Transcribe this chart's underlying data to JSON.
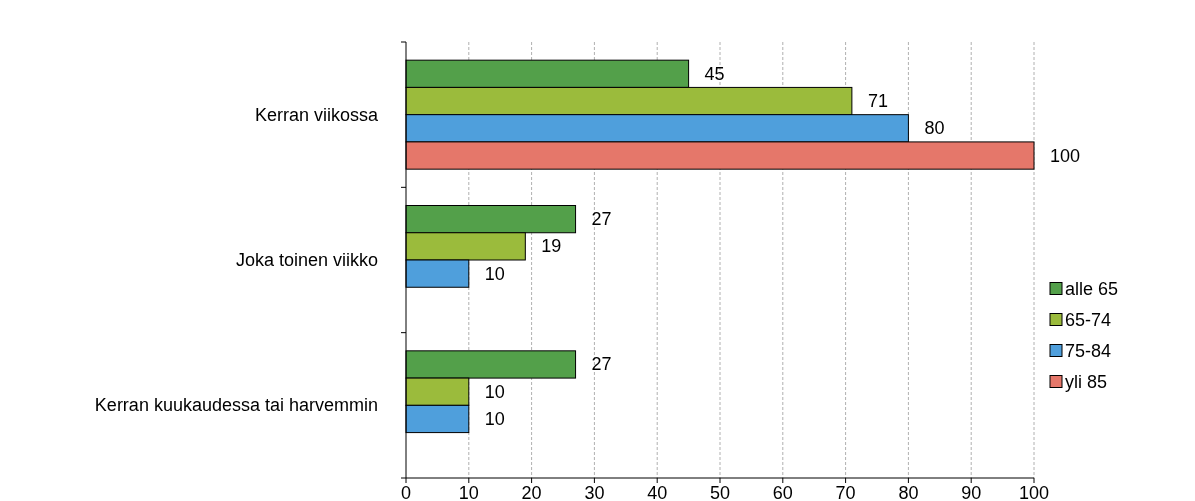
{
  "chart_data": {
    "type": "bar",
    "orientation": "horizontal",
    "categories": [
      "Kerran viikossa",
      "Joka toinen viikko",
      "Kerran kuukaudessa tai harvemmin"
    ],
    "series": [
      {
        "name": "alle 65",
        "color": "#53a04a",
        "values": [
          45,
          27,
          27
        ]
      },
      {
        "name": "65-74",
        "color": "#9bbb3c",
        "values": [
          71,
          19,
          10
        ]
      },
      {
        "name": "75-84",
        "color": "#4f9fdc",
        "values": [
          80,
          10,
          10
        ]
      },
      {
        "name": "yli 85",
        "color": "#e5776a",
        "values": [
          100,
          null,
          null
        ]
      }
    ],
    "xlim": [
      0,
      100
    ],
    "xticks": [
      0,
      10,
      20,
      30,
      40,
      50,
      60,
      70,
      80,
      90,
      100
    ],
    "grid": "x",
    "legend": "right",
    "data_labels": true
  }
}
